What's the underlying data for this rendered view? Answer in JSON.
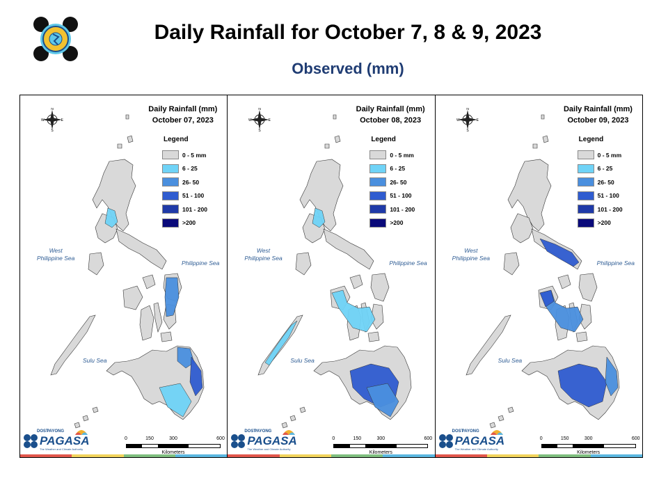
{
  "header": {
    "title": "Daily Rainfall for October 7, 8 & 9, 2023",
    "subtitle": "Observed (mm)"
  },
  "legend": {
    "title": "Legend",
    "items": [
      {
        "label": "0 - 5 mm",
        "color": "#d9d9d9"
      },
      {
        "label": "6 - 25",
        "color": "#6fd3f7"
      },
      {
        "label": "26- 50",
        "color": "#4a8fde"
      },
      {
        "label": "51 - 100",
        "color": "#2f5cd0"
      },
      {
        "label": "101 - 200",
        "color": "#1f3aa8"
      },
      {
        "label": ">200",
        "color": "#0a0a7a"
      }
    ]
  },
  "map_labels": {
    "west_sea": "West\nPhilippine Sea",
    "east_sea": "Philippine Sea",
    "south_sea": "Sulu Sea",
    "compass": {
      "n": "N",
      "s": "S",
      "e": "E",
      "w": "W"
    }
  },
  "scale_bar": {
    "ticks": [
      "0",
      "150",
      "300",
      "600"
    ],
    "unit": "Kilometers",
    "colors": [
      "#000000",
      "#ffffff",
      "#000000",
      "#ffffff"
    ]
  },
  "brand": {
    "dost": "DOST",
    "payong": "PAYONG",
    "name": "PAGASA",
    "tagline": "The Weather and Climate Authority"
  },
  "stripe_colors": [
    "#e2574c",
    "#f2d45c",
    "#7fbf7f",
    "#5bb7e0"
  ],
  "panels": [
    {
      "title_line1": "Daily Rainfall (mm)",
      "title_line2": "October 07, 2023",
      "rain_areas": [
        {
          "region": "Central Luzon",
          "class": "6 - 25"
        },
        {
          "region": "Eastern Visayas",
          "class": "26- 50"
        },
        {
          "region": "Northeastern Mindanao",
          "class": "26- 50"
        },
        {
          "region": "Eastern Mindanao",
          "class": "51 - 100"
        },
        {
          "region": "Southern Mindanao",
          "class": "6 - 25"
        }
      ]
    },
    {
      "title_line1": "Daily Rainfall (mm)",
      "title_line2": "October 08, 2023",
      "rain_areas": [
        {
          "region": "Central Luzon",
          "class": "6 - 25"
        },
        {
          "region": "Visayas",
          "class": "6 - 25"
        },
        {
          "region": "Palawan",
          "class": "6 - 25"
        },
        {
          "region": "Central Mindanao",
          "class": "51 - 100"
        },
        {
          "region": "Southern Mindanao",
          "class": "26- 50"
        }
      ]
    },
    {
      "title_line1": "Daily Rainfall (mm)",
      "title_line2": "October 09, 2023",
      "rain_areas": [
        {
          "region": "Bicol Region",
          "class": "51 - 100"
        },
        {
          "region": "Visayas",
          "class": "26- 50"
        },
        {
          "region": "Panay",
          "class": "51 - 100"
        },
        {
          "region": "Central Mindanao",
          "class": "51 - 100"
        },
        {
          "region": "Eastern Mindanao",
          "class": "26- 50"
        }
      ]
    }
  ]
}
